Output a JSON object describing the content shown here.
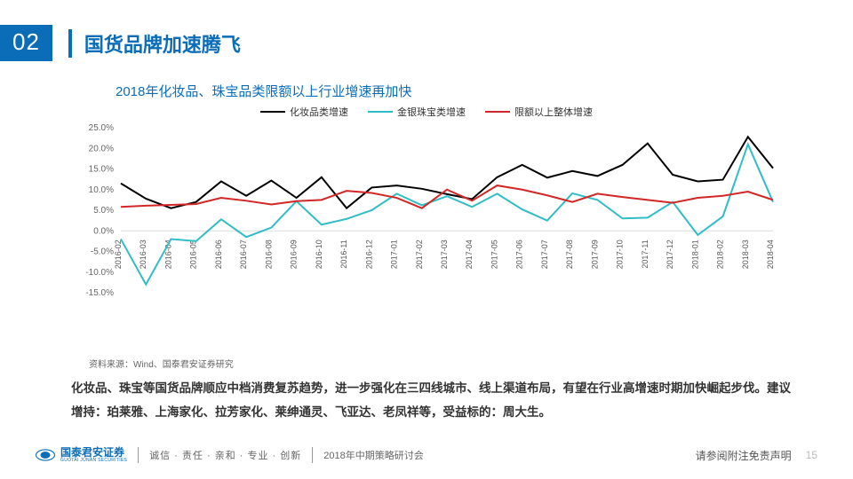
{
  "header": {
    "slide_number": "02",
    "title": "国货品牌加速腾飞"
  },
  "subtitle": "2018年化妆品、珠宝品类限额以上行业增速再加快",
  "chart": {
    "type": "line",
    "background_color": "#ffffff",
    "ylim": [
      -15,
      25
    ],
    "ytick_step": 5,
    "yticks": [
      "-15.0%",
      "-10.0%",
      "-5.0%",
      "0.0%",
      "5.0%",
      "10.0%",
      "15.0%",
      "20.0%",
      "25.0%"
    ],
    "categories": [
      "2016-02",
      "2016-03",
      "2016-04",
      "2016-05",
      "2016-06",
      "2016-07",
      "2016-08",
      "2016-09",
      "2016-10",
      "2016-11",
      "2016-12",
      "2017-01",
      "2017-02",
      "2017-03",
      "2017-04",
      "2017-05",
      "2017-06",
      "2017-07",
      "2017-08",
      "2017-09",
      "2017-10",
      "2017-11",
      "2017-12",
      "2018-01",
      "2018-02",
      "2018-03",
      "2018-04"
    ],
    "series": [
      {
        "name": "化妆品类增速",
        "color": "#000000",
        "width": 2,
        "values": [
          11.5,
          7.8,
          5.5,
          7.0,
          12.0,
          8.5,
          12.2,
          8.0,
          13.0,
          5.5,
          10.5,
          11.0,
          10.2,
          8.9,
          7.7,
          13.0,
          16.0,
          12.9,
          14.5,
          13.3,
          16.0,
          21.2,
          13.6,
          12.0,
          12.4,
          22.8,
          15.2
        ]
      },
      {
        "name": "金银珠宝类增速",
        "color": "#2fbdc6",
        "width": 2,
        "values": [
          -2.0,
          -13.0,
          -2.0,
          -2.5,
          2.8,
          -1.5,
          0.8,
          7.2,
          1.5,
          2.9,
          5.0,
          9.0,
          6.2,
          8.4,
          5.8,
          9.0,
          5.2,
          2.5,
          9.1,
          7.5,
          3.0,
          3.2,
          7.0,
          -1.0,
          3.5,
          21.0,
          7.0
        ]
      },
      {
        "name": "限额以上整体增速",
        "color": "#d32626",
        "width": 2,
        "values": [
          5.8,
          6.1,
          6.3,
          6.5,
          8.0,
          7.3,
          6.4,
          7.2,
          7.5,
          9.7,
          9.2,
          8.0,
          5.5,
          10.0,
          7.3,
          11.0,
          10.0,
          8.6,
          7.0,
          9.0,
          8.2,
          7.5,
          6.8,
          8.0,
          8.5,
          9.5,
          7.5
        ]
      }
    ],
    "label_fontsize": 10,
    "grid_color": "#dddddd"
  },
  "source": "资料来源：Wind、国泰君安证券研究",
  "body": "化妆品、珠宝等国货品牌顺应中档消费复苏趋势，进一步强化在三四线城市、线上渠道布局，有望在行业高增速时期加快崛起步伐。建议增持：珀莱雅、上海家化、拉芳家化、莱绅通灵、飞亚达、老凤祥等，受益标的：周大生。",
  "footer": {
    "logo_text": "国泰君安证券",
    "logo_sub": "GUOTAI JUNAN SECURITIES",
    "logo_color": "#0b6db7",
    "motto": "诚信 · 责任 · 亲和 · 专业 · 创新",
    "event": "2018年中期策略研讨会",
    "disclaimer": "请参阅附注免责声明",
    "page": "15"
  }
}
